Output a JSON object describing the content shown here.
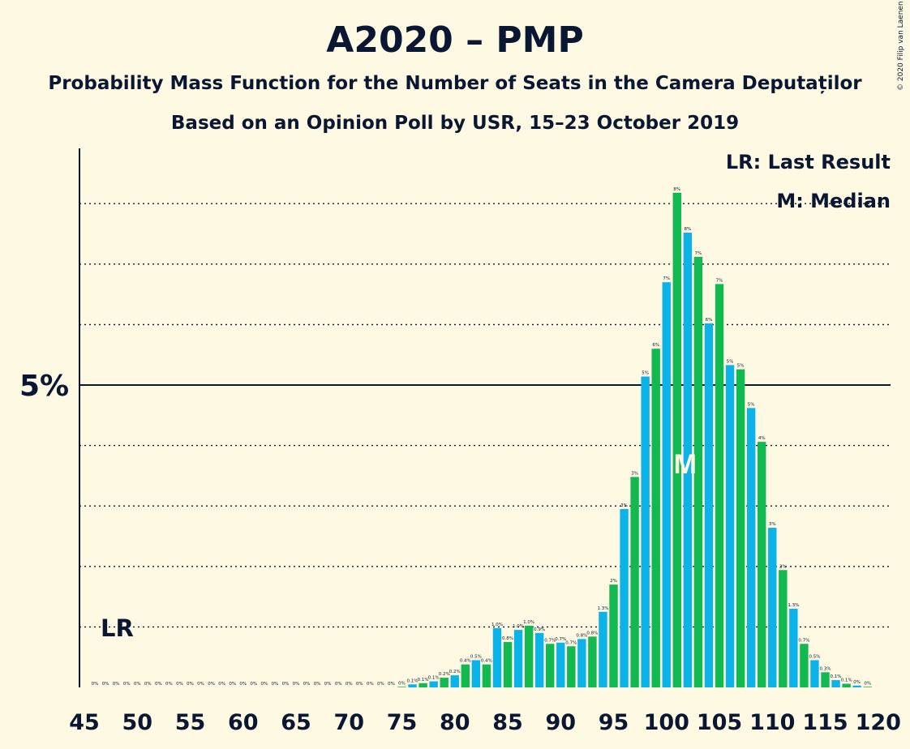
{
  "header": {
    "title": "A2020 – PMP",
    "subtitle": "Probability Mass Function for the Number of Seats in the Camera Deputaților",
    "subtitle2": "Based on an Opinion Poll by USR, 15–23 October 2019",
    "copyright": "© 2020 Filip van Laenen"
  },
  "legend": {
    "lr": "LR: Last Result",
    "median": "M: Median"
  },
  "markers": {
    "lr_label": "LR",
    "lr_seat": 48,
    "median_label": "M",
    "median_seat": 102,
    "y_label": "5%"
  },
  "colors": {
    "blue": "#0bb3e8",
    "green": "#12b850",
    "text": "#0a1733",
    "background": "#fef9e3"
  },
  "chart_data": {
    "type": "bar",
    "title": "A2020 – PMP",
    "xlabel": "",
    "ylabel": "",
    "x_ticks": [
      45,
      50,
      55,
      60,
      65,
      70,
      75,
      80,
      85,
      90,
      95,
      100,
      105,
      110,
      115,
      120
    ],
    "y_ticks_percent": [
      1,
      2,
      3,
      4,
      5,
      6,
      7,
      8
    ],
    "ylim_percent": [
      0,
      8.65
    ],
    "xlim": [
      45,
      120
    ],
    "seats": [
      46,
      47,
      48,
      49,
      50,
      51,
      52,
      53,
      54,
      55,
      56,
      57,
      58,
      59,
      60,
      61,
      62,
      63,
      64,
      65,
      66,
      67,
      68,
      69,
      70,
      71,
      72,
      73,
      74,
      75,
      76,
      77,
      78,
      79,
      80,
      81,
      82,
      83,
      84,
      85,
      86,
      87,
      88,
      89,
      90,
      91,
      92,
      93,
      94,
      95,
      96,
      97,
      98,
      99,
      100,
      101,
      102,
      103,
      104,
      105,
      106,
      107,
      108,
      109,
      110,
      111,
      112,
      113,
      114,
      115,
      116,
      117,
      118,
      119
    ],
    "values_percent": [
      0,
      0,
      0,
      0,
      0,
      0,
      0,
      0,
      0,
      0,
      0,
      0,
      0,
      0,
      0,
      0,
      0,
      0,
      0,
      0,
      0,
      0,
      0,
      0,
      0,
      0,
      0,
      0,
      0,
      0.01,
      0.05,
      0.07,
      0.1,
      0.16,
      0.2,
      0.38,
      0.45,
      0.38,
      0.98,
      0.75,
      0.95,
      1.02,
      0.9,
      0.72,
      0.74,
      0.68,
      0.8,
      0.84,
      1.25,
      1.7,
      2.95,
      3.48,
      5.14,
      5.6,
      6.7,
      8.18,
      7.52,
      7.12,
      6.02,
      6.67,
      5.33,
      5.26,
      4.62,
      4.06,
      2.64,
      1.94,
      1.3,
      0.72,
      0.45,
      0.25,
      0.12,
      0.06,
      0.03,
      0.01
    ],
    "data_labels": [
      "0%",
      "0%",
      "0%",
      "0%",
      "0%",
      "0%",
      "0%",
      "0%",
      "0%",
      "0%",
      "0%",
      "0%",
      "0%",
      "0%",
      "0%",
      "0%",
      "0%",
      "0%",
      "0%",
      "0%",
      "0%",
      "0%",
      "0%",
      "0%",
      "0%",
      "0%",
      "0%",
      "0%",
      "0%",
      "0%",
      "0.1%",
      "0.1%",
      "0.1%",
      "0.2%",
      "0.2%",
      "0.4%",
      "0.5%",
      "0.4%",
      "1.0%",
      "0.8%",
      "1.0%",
      "1.0%",
      "0.9%",
      "0.7%",
      "0.7%",
      "0.7%",
      "0.8%",
      "0.8%",
      "1.3%",
      "2%",
      "3%",
      "3%",
      "5%",
      "6%",
      "7%",
      "8%",
      "8%",
      "7%",
      "6%",
      "7%",
      "5%",
      "5%",
      "5%",
      "4%",
      "3%",
      "2%",
      "1.3%",
      "0.7%",
      "0.5%",
      "0.3%",
      "0.1%",
      "0.1%",
      "0%",
      "0%"
    ],
    "series_colors_by_parity": {
      "even_seat": "#0bb3e8",
      "odd_seat": "#12b850"
    },
    "grid": "dotted horizontal",
    "legend_position": "top-right"
  }
}
